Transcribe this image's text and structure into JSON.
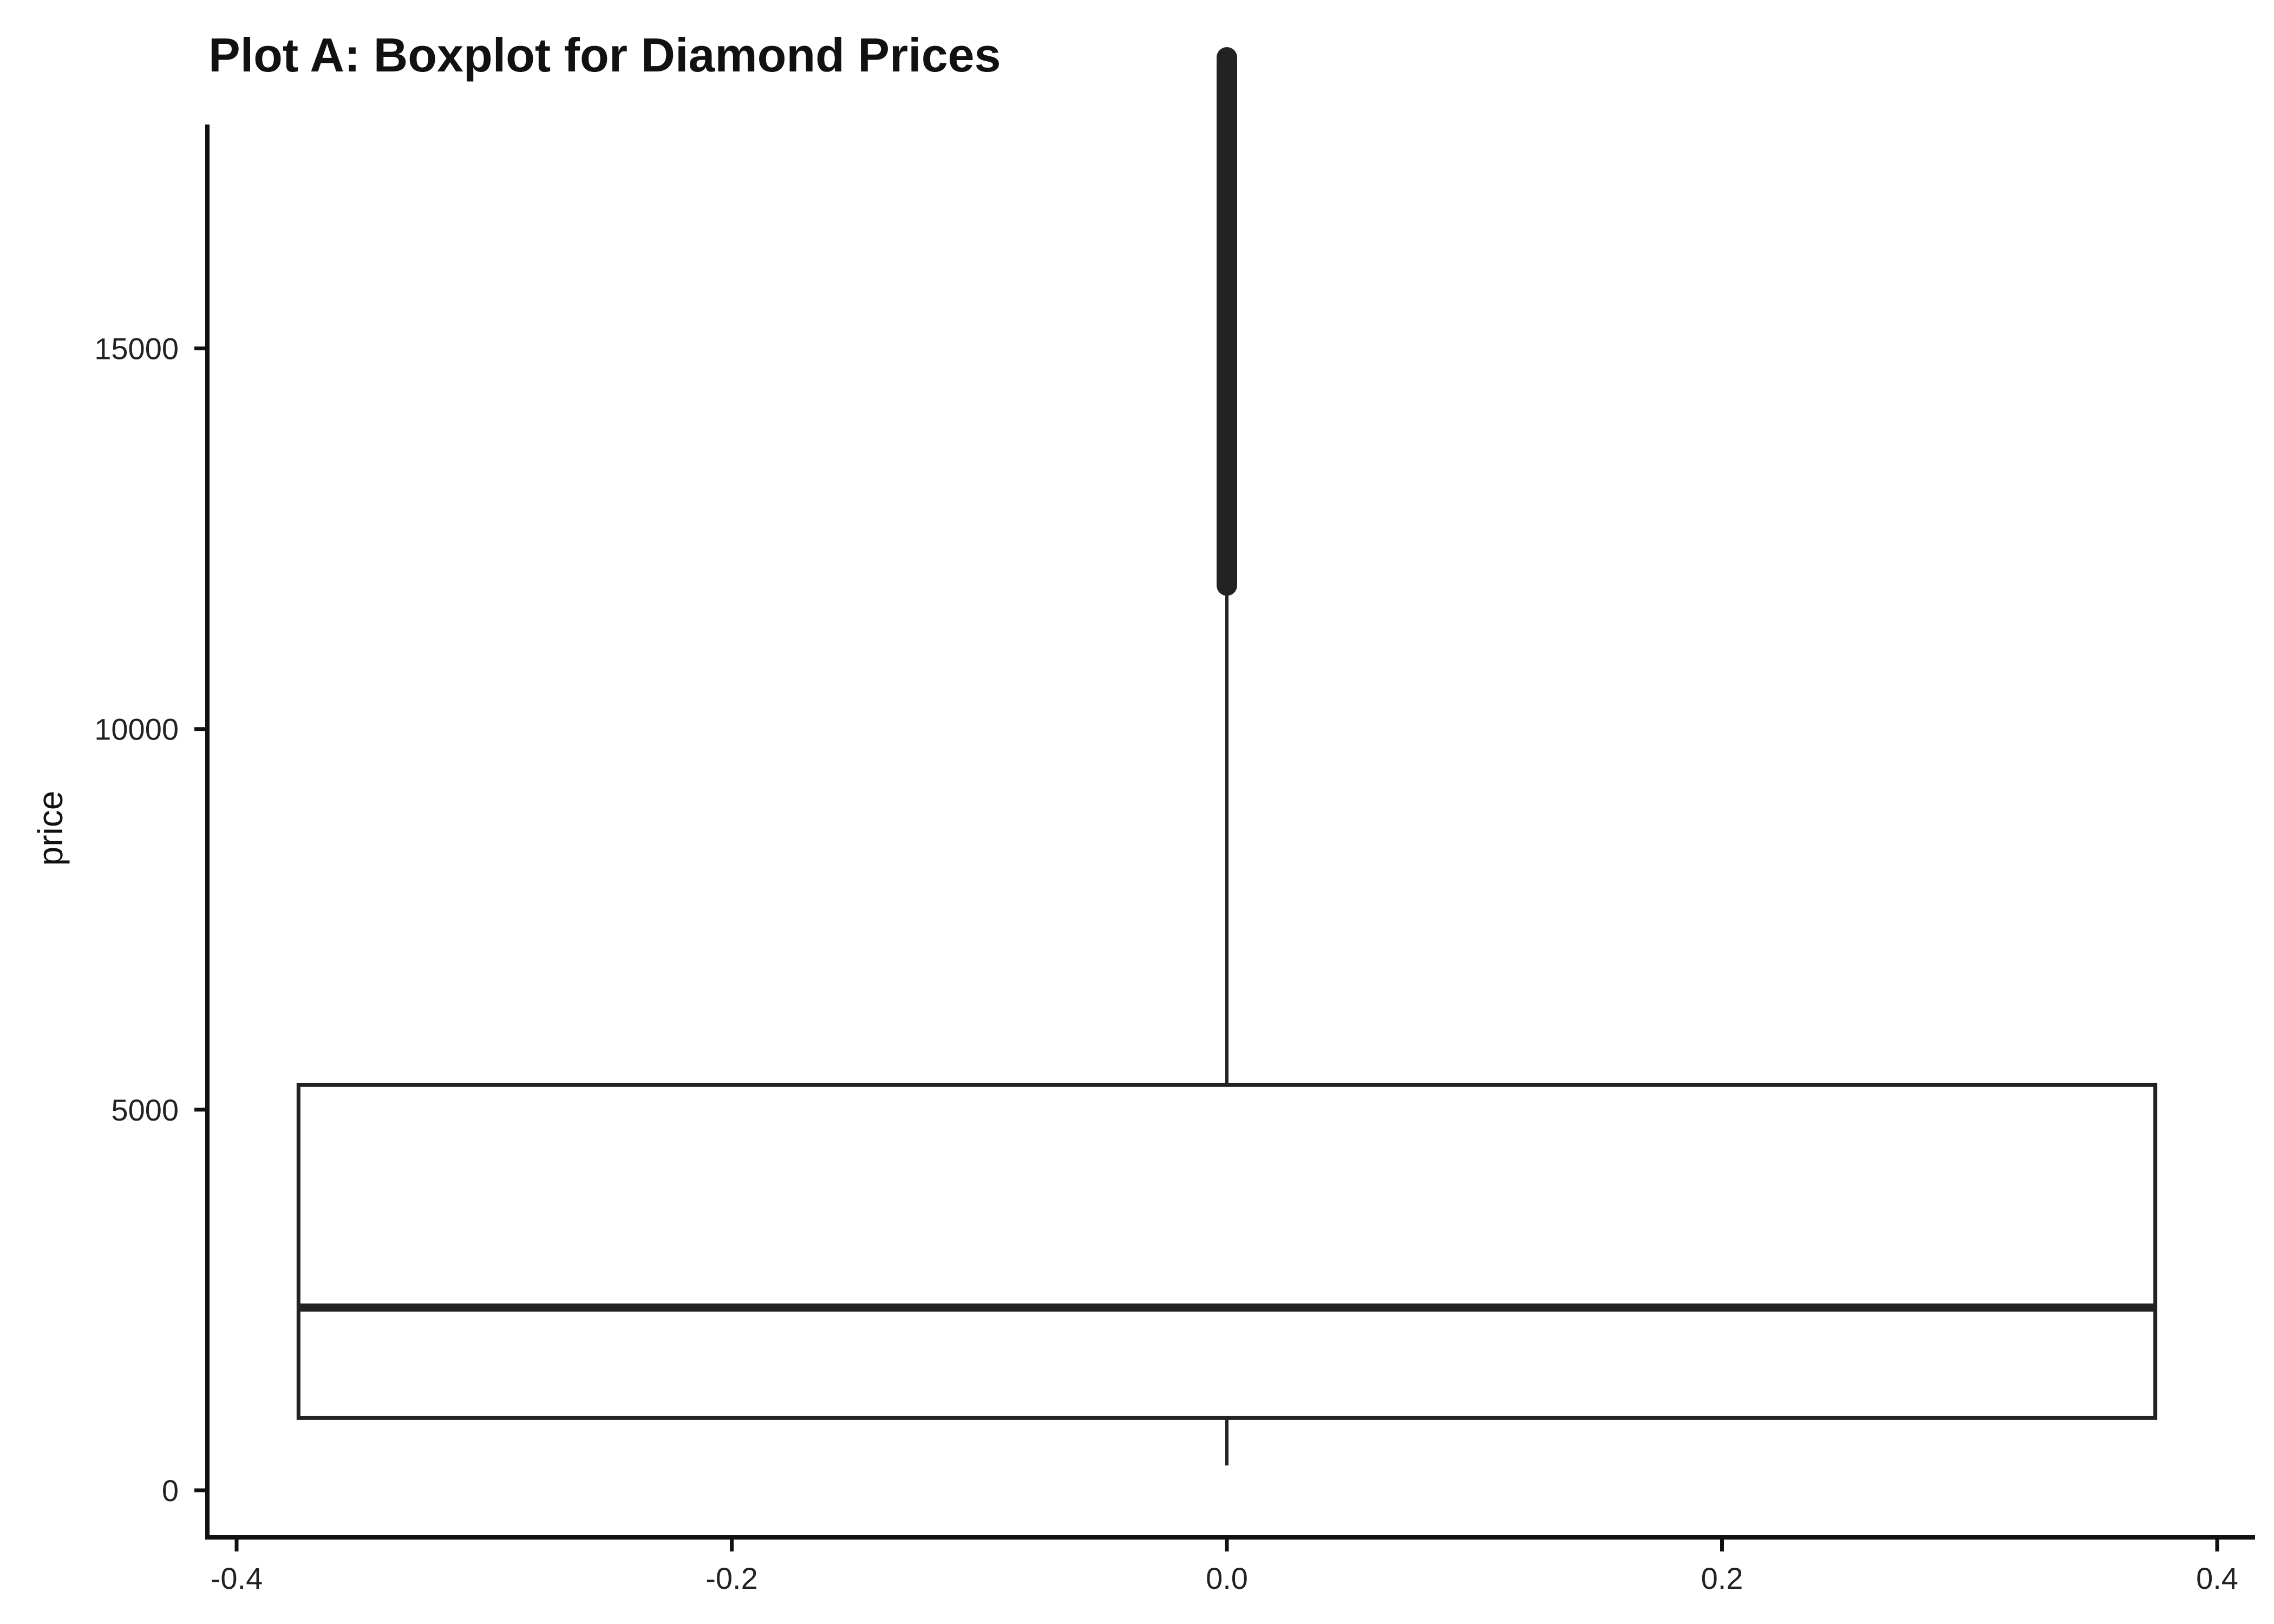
{
  "chart_data": {
    "type": "boxplot",
    "title": "Plot A: Boxplot for Diamond Prices",
    "xlabel": "",
    "ylabel": "price",
    "xlim": [
      -0.4,
      0.4
    ],
    "ylim": [
      0,
      18823
    ],
    "x_ticks": [
      -0.4,
      -0.2,
      0.0,
      0.2,
      0.4
    ],
    "x_tick_labels": [
      "-0.4",
      "-0.2",
      "0.0",
      "0.2",
      "0.4"
    ],
    "y_ticks": [
      0,
      5000,
      10000,
      15000
    ],
    "y_tick_labels": [
      "0",
      "5000",
      "10000",
      "15000"
    ],
    "box": {
      "x_center": 0.0,
      "x_left": -0.375,
      "x_right": 0.375,
      "whisker_min": 326,
      "q1": 950,
      "median": 2401,
      "q3": 5324,
      "whisker_max": 11886,
      "outlier_min": 11886,
      "outlier_max": 18823
    },
    "grid": false,
    "colors": {
      "line": "#222222",
      "box_fill": "#ffffff",
      "axis": "#111111"
    }
  }
}
